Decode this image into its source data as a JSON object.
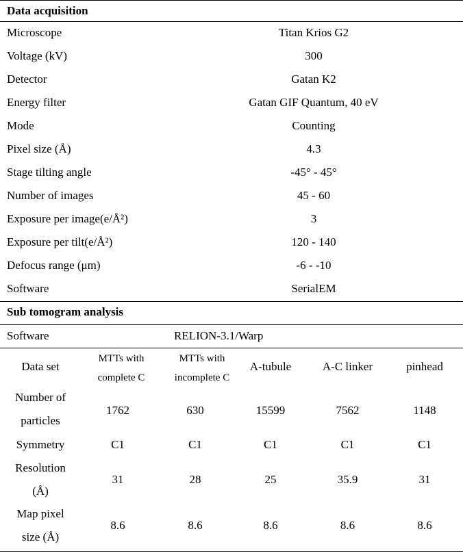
{
  "section1": {
    "title": "Data acquisition",
    "rows": [
      {
        "label": "Microscope",
        "value": "Titan Krios G2"
      },
      {
        "label": "Voltage (kV)",
        "value": "300"
      },
      {
        "label": "Detector",
        "value": "Gatan K2"
      },
      {
        "label": "Energy filter",
        "value": "Gatan GIF Quantum, 40 eV"
      },
      {
        "label": "Mode",
        "value": "Counting"
      },
      {
        "label": "Pixel size (Å)",
        "value": "4.3"
      },
      {
        "label": "Stage tilting angle",
        "value": "-45° - 45°"
      },
      {
        "label": "Number of images",
        "value": "45 - 60"
      },
      {
        "label": "Exposure per image(e/Å²)",
        "value": "3"
      },
      {
        "label": "Exposure per tilt(e/Å²)",
        "value": "120 - 140"
      },
      {
        "label": "Defocus range (μm)",
        "value": "-6 - -10"
      },
      {
        "label": "Software",
        "value": "SerialEM"
      }
    ]
  },
  "section2": {
    "title": "Sub tomogram analysis",
    "software_label": "Software",
    "software_value": "RELION-3.1/Warp",
    "header": {
      "c0": "Data set",
      "c1a": "MTTs with",
      "c1b": "complete C",
      "c2a": "MTTs with",
      "c2b": "incomplete C",
      "c3": "A-tubule",
      "c4": "A-C linker",
      "c5": "pinhead"
    },
    "rows": [
      {
        "label_a": "Number of",
        "label_b": "particles",
        "v1": "1762",
        "v2": "630",
        "v3": "15599",
        "v4": "7562",
        "v5": "1148"
      },
      {
        "label_a": "Symmetry",
        "label_b": "",
        "v1": "C1",
        "v2": "C1",
        "v3": "C1",
        "v4": "C1",
        "v5": "C1"
      },
      {
        "label_a": "Resolution",
        "label_b": "(Å)",
        "v1": "31",
        "v2": "28",
        "v3": "25",
        "v4": "35.9",
        "v5": "31"
      },
      {
        "label_a": "Map pixel",
        "label_b": "size (Å)",
        "v1": "8.6",
        "v2": "8.6",
        "v3": "8.6",
        "v4": "8.6",
        "v5": "8.6"
      }
    ]
  }
}
